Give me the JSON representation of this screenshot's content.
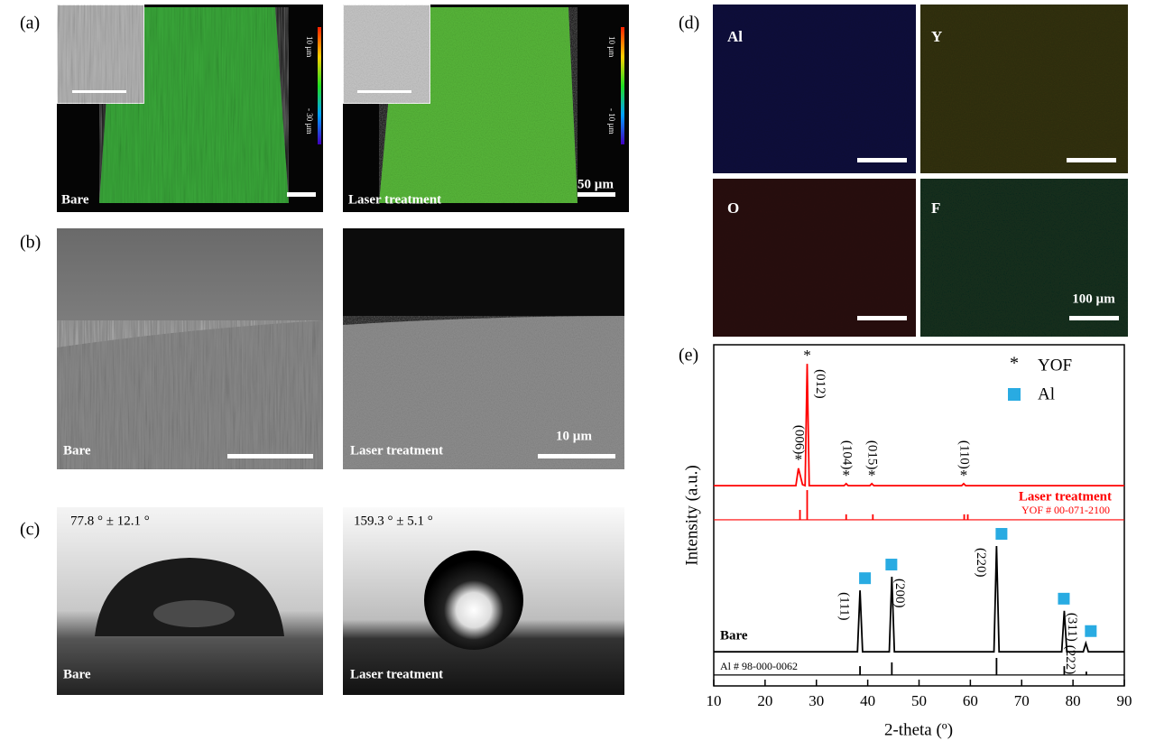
{
  "panels": {
    "a": {
      "label": "(a)",
      "left": {
        "caption": "Bare",
        "colorbar": [
          "10 µm",
          "- 30 µm"
        ]
      },
      "right": {
        "caption": "Laser treatment",
        "colorbar": [
          "10 µm",
          "- 10 µm"
        ],
        "scale": "50 µm"
      }
    },
    "b": {
      "label": "(b)",
      "left": {
        "caption": "Bare"
      },
      "right": {
        "caption": "Laser treatment",
        "scale": "10 µm"
      }
    },
    "c": {
      "label": "(c)",
      "left": {
        "caption": "Bare",
        "angle": "77.8 ° ± 12.1 °"
      },
      "right": {
        "caption": "Laser treatment",
        "angle": "159.3 ° ± 5.1 °"
      }
    },
    "d": {
      "label": "(d)",
      "maps": [
        "Al",
        "Y",
        "O",
        "F"
      ],
      "scale": "100 µm"
    }
  },
  "chart_data": {
    "type": "line",
    "label": "(e)",
    "xlabel": "2-theta (º)",
    "ylabel": "Intensity (a.u.)",
    "xlim": [
      10,
      90
    ],
    "xticks": [
      10,
      20,
      30,
      40,
      50,
      60,
      70,
      80,
      90
    ],
    "ylim": [
      0,
      100
    ],
    "legend": [
      {
        "symbol": "*",
        "label": "YOF"
      },
      {
        "label": "Al",
        "color": "#29abe2"
      }
    ],
    "series": [
      {
        "name": "Laser treatment",
        "color": "#ff0000",
        "style": "line",
        "x": [
          10,
          26.0,
          26.5,
          27.3,
          27.8,
          28.2,
          28.6,
          35.4,
          35.8,
          36.2,
          40.4,
          40.8,
          41.2,
          58.3,
          58.7,
          59.1,
          90
        ],
        "values": [
          58.7,
          58.7,
          63.8,
          59,
          58.7,
          94.4,
          58.7,
          58.7,
          59.3,
          58.7,
          58.7,
          59.3,
          58.7,
          58.7,
          59.3,
          58.7,
          58.7
        ]
      },
      {
        "name": "YOF # 00-071-2100",
        "color": "#ff0000",
        "style": "stick",
        "base": 48.7,
        "x": [
          26.8,
          28.2,
          35.8,
          41,
          58.8,
          59.5
        ],
        "values": [
          51.6,
          57.4,
          50.3,
          50.3,
          50.3,
          50.3
        ]
      },
      {
        "name": "Bare",
        "color": "#000000",
        "style": "line",
        "x": [
          10,
          38.0,
          38.5,
          39.0,
          44.2,
          44.7,
          45.2,
          64.6,
          65.1,
          65.6,
          77.8,
          78.3,
          78.8,
          82.0,
          82.5,
          83.0,
          90
        ],
        "values": [
          10,
          10,
          28,
          10,
          10,
          32,
          10,
          10,
          41,
          10,
          10,
          22,
          10,
          10,
          12.5,
          10,
          10
        ]
      },
      {
        "name": "Al # 98-000-0062",
        "color": "#000000",
        "style": "stick",
        "base": 3.2,
        "x": [
          38.5,
          44.7,
          65.1,
          78.3,
          82.6
        ],
        "values": [
          5.8,
          6.9,
          8.2,
          5.8,
          4.2
        ]
      }
    ],
    "yof_peaks": [
      {
        "x": 26.5,
        "y": 63.8,
        "label": "(006)"
      },
      {
        "x": 28.2,
        "y": 94.4,
        "label": "(012)"
      },
      {
        "x": 35.8,
        "y": 59.3,
        "label": "(104)"
      },
      {
        "x": 40.8,
        "y": 59.3,
        "label": "(015)"
      },
      {
        "x": 58.7,
        "y": 59.3,
        "label": "(110)"
      }
    ],
    "al_peaks": [
      {
        "x": 38.5,
        "y": 28,
        "label": "(111)"
      },
      {
        "x": 44.7,
        "y": 32,
        "label": "(200)"
      },
      {
        "x": 65.1,
        "y": 41,
        "label": "(220)"
      },
      {
        "x": 78.3,
        "y": 22,
        "label": "(311)"
      },
      {
        "x": 82.5,
        "y": 12.5,
        "label": "(222)"
      }
    ]
  }
}
